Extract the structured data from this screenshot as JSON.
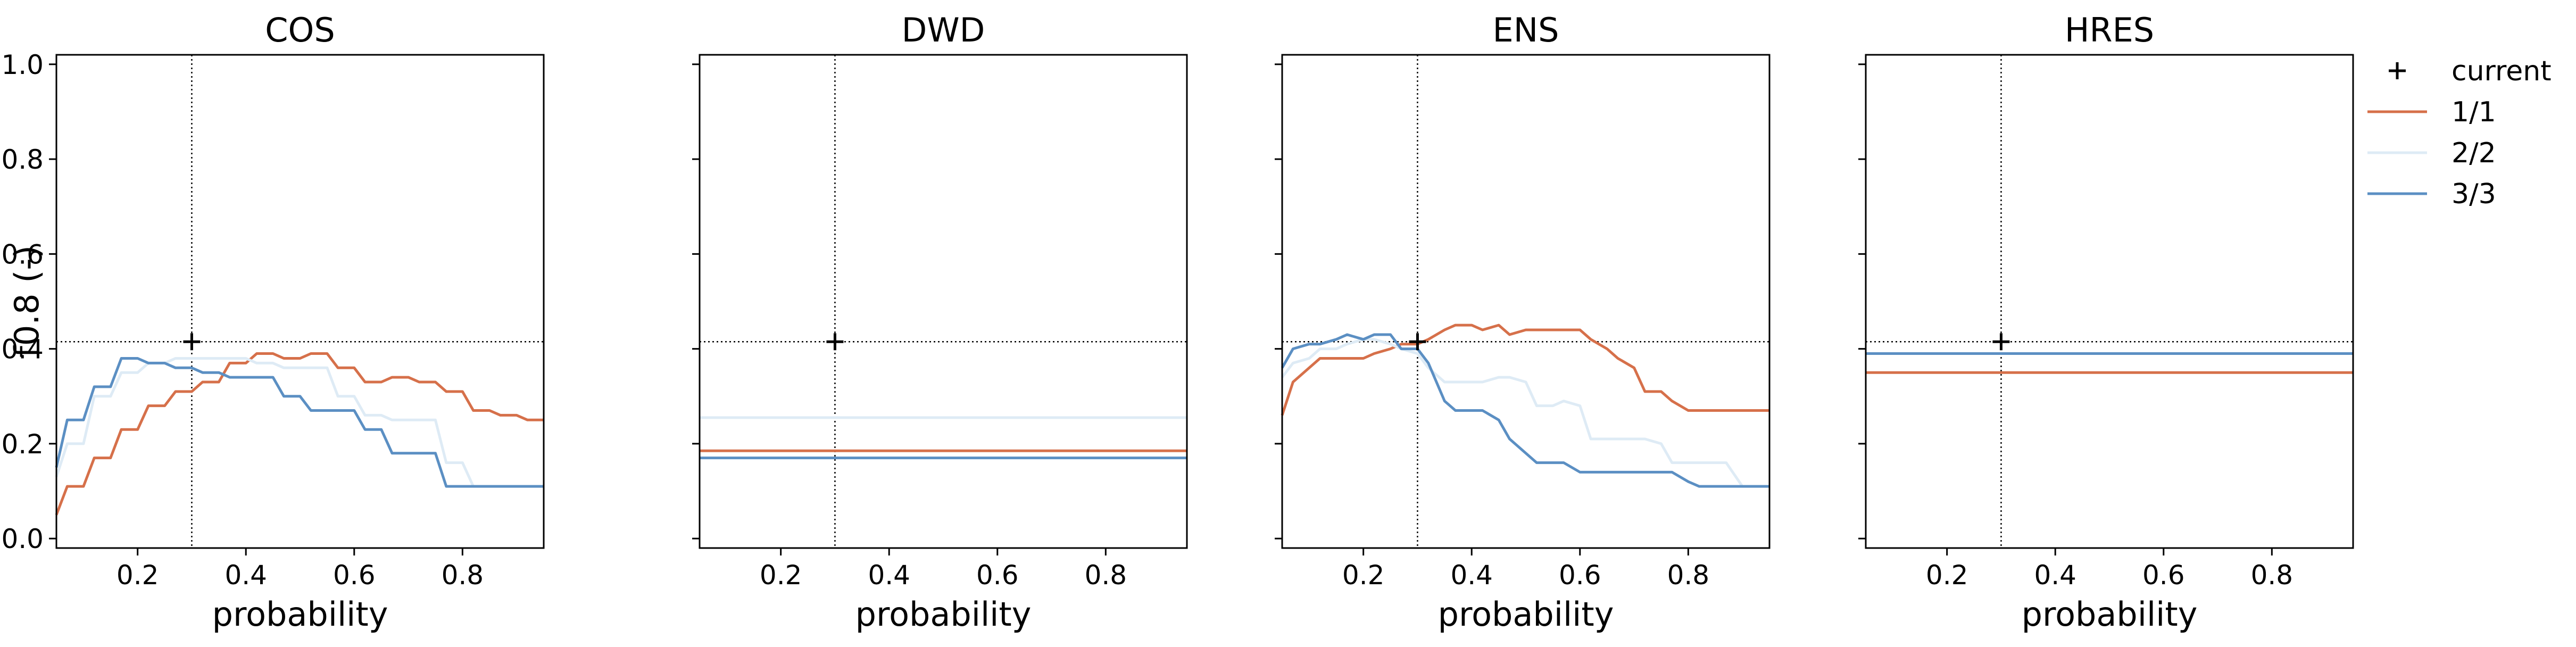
{
  "chart_data": {
    "type": "line",
    "ylabel": "f0.8 (-)",
    "ylim": [
      -0.02,
      1.02
    ],
    "yticks": [
      0.0,
      0.2,
      0.4,
      0.6,
      0.8,
      1.0
    ],
    "ytick_labels": [
      "0.0",
      "0.2",
      "0.4",
      "0.6",
      "0.8",
      "1.0"
    ],
    "xlim": [
      0.05,
      0.95
    ],
    "xticks": [
      0.2,
      0.4,
      0.6,
      0.8
    ],
    "xtick_labels": [
      "0.2",
      "0.4",
      "0.6",
      "0.8"
    ],
    "reference": {
      "x": 0.3,
      "y": 0.415,
      "label": "current"
    },
    "legend": {
      "placement": "outside-right",
      "entries": [
        "current",
        "1/1",
        "2/2",
        "3/3"
      ]
    },
    "series_styles": [
      {
        "name": "1/1",
        "color": "#d6704a"
      },
      {
        "name": "2/2",
        "color": "#deebf5"
      },
      {
        "name": "3/3",
        "color": "#5b8fc3"
      }
    ],
    "subplots": [
      {
        "title": "COS",
        "xlabel": "probability",
        "series": [
          {
            "name": "1/1",
            "x": [
              0.05,
              0.07,
              0.1,
              0.12,
              0.15,
              0.17,
              0.2,
              0.22,
              0.25,
              0.27,
              0.3,
              0.32,
              0.35,
              0.37,
              0.4,
              0.42,
              0.45,
              0.47,
              0.5,
              0.52,
              0.55,
              0.57,
              0.6,
              0.62,
              0.65,
              0.67,
              0.7,
              0.72,
              0.75,
              0.77,
              0.8,
              0.82,
              0.85,
              0.87,
              0.9,
              0.92,
              0.95
            ],
            "y": [
              0.05,
              0.11,
              0.11,
              0.17,
              0.17,
              0.23,
              0.23,
              0.28,
              0.28,
              0.31,
              0.31,
              0.33,
              0.33,
              0.37,
              0.37,
              0.39,
              0.39,
              0.38,
              0.38,
              0.39,
              0.39,
              0.36,
              0.36,
              0.33,
              0.33,
              0.34,
              0.34,
              0.33,
              0.33,
              0.31,
              0.31,
              0.27,
              0.27,
              0.26,
              0.26,
              0.25,
              0.25
            ]
          },
          {
            "name": "2/2",
            "x": [
              0.05,
              0.07,
              0.1,
              0.12,
              0.15,
              0.17,
              0.2,
              0.22,
              0.25,
              0.27,
              0.3,
              0.32,
              0.35,
              0.37,
              0.4,
              0.42,
              0.45,
              0.47,
              0.5,
              0.52,
              0.55,
              0.57,
              0.6,
              0.62,
              0.65,
              0.67,
              0.7,
              0.72,
              0.75,
              0.77,
              0.8,
              0.82,
              0.85,
              0.87,
              0.9,
              0.92,
              0.95
            ],
            "y": [
              0.13,
              0.2,
              0.2,
              0.3,
              0.3,
              0.35,
              0.35,
              0.37,
              0.37,
              0.38,
              0.38,
              0.38,
              0.38,
              0.38,
              0.38,
              0.37,
              0.37,
              0.36,
              0.36,
              0.36,
              0.36,
              0.3,
              0.3,
              0.26,
              0.26,
              0.25,
              0.25,
              0.25,
              0.25,
              0.16,
              0.16,
              0.11,
              0.11,
              0.11,
              0.11,
              0.11,
              0.11
            ]
          },
          {
            "name": "3/3",
            "x": [
              0.05,
              0.07,
              0.1,
              0.12,
              0.15,
              0.17,
              0.2,
              0.22,
              0.25,
              0.27,
              0.3,
              0.32,
              0.35,
              0.37,
              0.4,
              0.42,
              0.45,
              0.47,
              0.5,
              0.52,
              0.55,
              0.57,
              0.6,
              0.62,
              0.65,
              0.67,
              0.7,
              0.72,
              0.75,
              0.77,
              0.8,
              0.82,
              0.85,
              0.87,
              0.9,
              0.92,
              0.95
            ],
            "y": [
              0.15,
              0.25,
              0.25,
              0.32,
              0.32,
              0.38,
              0.38,
              0.37,
              0.37,
              0.36,
              0.36,
              0.35,
              0.35,
              0.34,
              0.34,
              0.34,
              0.34,
              0.3,
              0.3,
              0.27,
              0.27,
              0.27,
              0.27,
              0.23,
              0.23,
              0.18,
              0.18,
              0.18,
              0.18,
              0.11,
              0.11,
              0.11,
              0.11,
              0.11,
              0.11,
              0.11,
              0.11
            ]
          }
        ]
      },
      {
        "title": "DWD",
        "xlabel": "probability",
        "series": [
          {
            "name": "1/1",
            "x": [
              0.05,
              0.95
            ],
            "y": [
              0.185,
              0.185
            ]
          },
          {
            "name": "2/2",
            "x": [
              0.05,
              0.95
            ],
            "y": [
              0.255,
              0.255
            ]
          },
          {
            "name": "3/3",
            "x": [
              0.05,
              0.95
            ],
            "y": [
              0.17,
              0.17
            ]
          }
        ]
      },
      {
        "title": "ENS",
        "xlabel": "probability",
        "series": [
          {
            "name": "1/1",
            "x": [
              0.05,
              0.07,
              0.1,
              0.12,
              0.15,
              0.17,
              0.2,
              0.22,
              0.25,
              0.27,
              0.3,
              0.32,
              0.35,
              0.37,
              0.4,
              0.42,
              0.45,
              0.47,
              0.5,
              0.52,
              0.55,
              0.57,
              0.6,
              0.62,
              0.65,
              0.67,
              0.7,
              0.72,
              0.75,
              0.77,
              0.8,
              0.82,
              0.85,
              0.87,
              0.9,
              0.92,
              0.95
            ],
            "y": [
              0.26,
              0.33,
              0.36,
              0.38,
              0.38,
              0.38,
              0.38,
              0.39,
              0.4,
              0.41,
              0.41,
              0.42,
              0.44,
              0.45,
              0.45,
              0.44,
              0.45,
              0.43,
              0.44,
              0.44,
              0.44,
              0.44,
              0.44,
              0.42,
              0.4,
              0.38,
              0.36,
              0.31,
              0.31,
              0.29,
              0.27,
              0.27,
              0.27,
              0.27,
              0.27,
              0.27,
              0.27
            ]
          },
          {
            "name": "2/2",
            "x": [
              0.05,
              0.07,
              0.1,
              0.12,
              0.15,
              0.17,
              0.2,
              0.22,
              0.25,
              0.27,
              0.3,
              0.32,
              0.35,
              0.37,
              0.4,
              0.42,
              0.45,
              0.47,
              0.5,
              0.52,
              0.55,
              0.57,
              0.6,
              0.62,
              0.65,
              0.67,
              0.7,
              0.72,
              0.75,
              0.77,
              0.8,
              0.82,
              0.85,
              0.87,
              0.9,
              0.92,
              0.95
            ],
            "y": [
              0.34,
              0.37,
              0.38,
              0.4,
              0.4,
              0.41,
              0.42,
              0.42,
              0.41,
              0.4,
              0.39,
              0.36,
              0.33,
              0.33,
              0.33,
              0.33,
              0.34,
              0.34,
              0.33,
              0.28,
              0.28,
              0.29,
              0.28,
              0.21,
              0.21,
              0.21,
              0.21,
              0.21,
              0.2,
              0.16,
              0.16,
              0.16,
              0.16,
              0.16,
              0.11,
              0.11,
              0.11
            ]
          },
          {
            "name": "3/3",
            "x": [
              0.05,
              0.07,
              0.1,
              0.12,
              0.15,
              0.17,
              0.2,
              0.22,
              0.25,
              0.27,
              0.3,
              0.32,
              0.35,
              0.37,
              0.4,
              0.42,
              0.45,
              0.47,
              0.5,
              0.52,
              0.55,
              0.57,
              0.6,
              0.62,
              0.65,
              0.67,
              0.7,
              0.72,
              0.75,
              0.77,
              0.8,
              0.82,
              0.85,
              0.87,
              0.9,
              0.92,
              0.95
            ],
            "y": [
              0.36,
              0.4,
              0.41,
              0.41,
              0.42,
              0.43,
              0.42,
              0.43,
              0.43,
              0.4,
              0.4,
              0.37,
              0.29,
              0.27,
              0.27,
              0.27,
              0.25,
              0.21,
              0.18,
              0.16,
              0.16,
              0.16,
              0.14,
              0.14,
              0.14,
              0.14,
              0.14,
              0.14,
              0.14,
              0.14,
              0.12,
              0.11,
              0.11,
              0.11,
              0.11,
              0.11,
              0.11
            ]
          }
        ]
      },
      {
        "title": "HRES",
        "xlabel": "probability",
        "series": [
          {
            "name": "1/1",
            "x": [
              0.05,
              0.95
            ],
            "y": [
              0.35,
              0.35
            ]
          },
          {
            "name": "2/2",
            "x": [
              0.05,
              0.95
            ],
            "y": [
              0.39,
              0.39
            ]
          },
          {
            "name": "3/3",
            "x": [
              0.05,
              0.95
            ],
            "y": [
              0.39,
              0.39
            ]
          }
        ]
      }
    ]
  }
}
